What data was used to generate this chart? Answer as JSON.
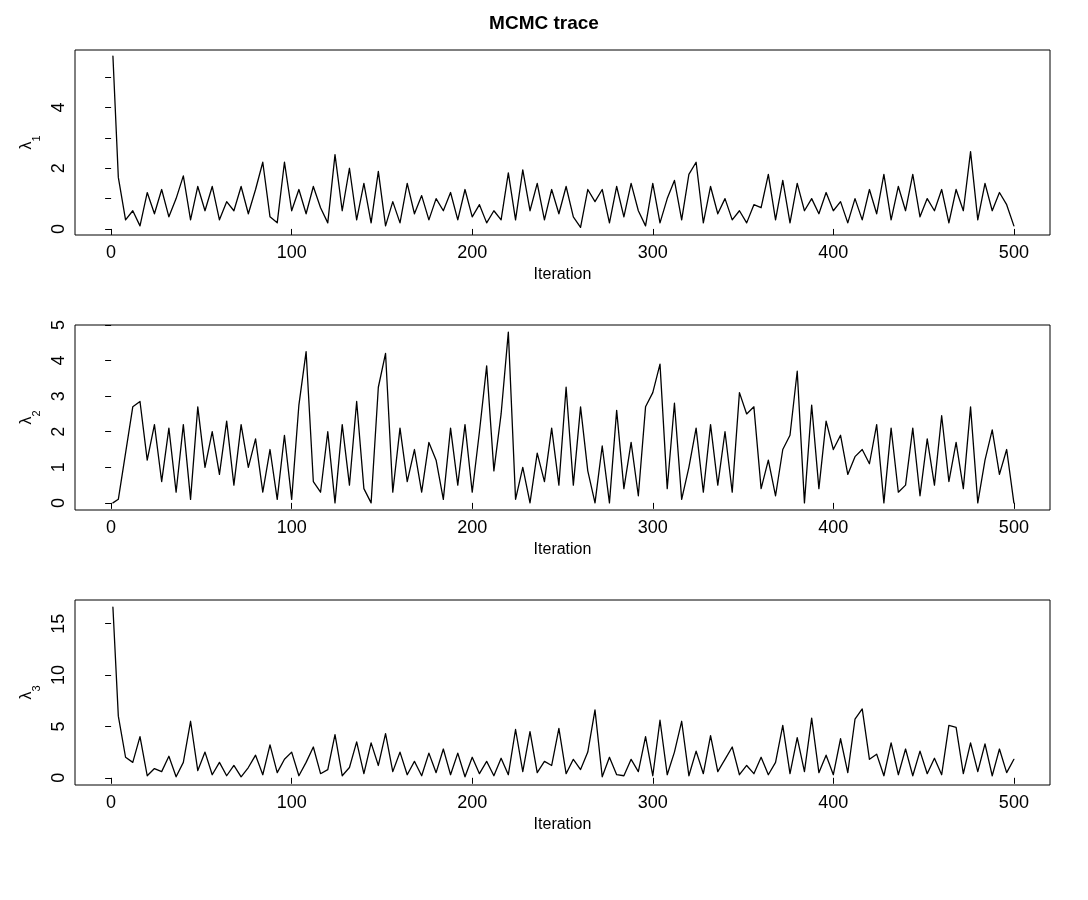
{
  "chart_data": [
    {
      "type": "line",
      "title": "MCMC trace",
      "xlabel": "Iteration",
      "ylabel": "λ$_{1}$",
      "xlim": [
        -20,
        520
      ],
      "xticks": [
        0,
        100,
        200,
        300,
        400,
        500
      ],
      "ylim": [
        -0.2,
        5.9
      ],
      "yticks": [
        0,
        {
          "value": 1,
          "label": null
        },
        2,
        {
          "value": 3,
          "label": null
        },
        4,
        {
          "value": 5,
          "label": null
        }
      ],
      "marker": "none",
      "line_style": "solid",
      "x": [
        1,
        4,
        8,
        12,
        16,
        20,
        24,
        28,
        32,
        36,
        40,
        44,
        48,
        52,
        56,
        60,
        64,
        68,
        72,
        76,
        80,
        84,
        88,
        92,
        96,
        100,
        104,
        108,
        112,
        116,
        120,
        124,
        128,
        132,
        136,
        140,
        144,
        148,
        152,
        156,
        160,
        164,
        168,
        172,
        176,
        180,
        184,
        188,
        192,
        196,
        200,
        204,
        208,
        212,
        216,
        220,
        224,
        228,
        232,
        236,
        240,
        244,
        248,
        252,
        256,
        260,
        264,
        268,
        272,
        276,
        280,
        284,
        288,
        292,
        296,
        300,
        304,
        308,
        312,
        316,
        320,
        324,
        328,
        332,
        336,
        340,
        344,
        348,
        352,
        356,
        360,
        364,
        368,
        372,
        376,
        380,
        384,
        388,
        392,
        396,
        400,
        404,
        408,
        412,
        416,
        420,
        424,
        428,
        432,
        436,
        440,
        444,
        448,
        452,
        456,
        460,
        464,
        468,
        472,
        476,
        480,
        484,
        488,
        492,
        496,
        500
      ],
      "series": [
        {
          "color": "#000000",
          "values": [
            5.7,
            1.7,
            0.3,
            0.6,
            0.1,
            1.2,
            0.5,
            1.3,
            0.4,
            1.0,
            1.75,
            0.3,
            1.4,
            0.6,
            1.4,
            0.3,
            0.9,
            0.6,
            1.4,
            0.5,
            1.3,
            2.2,
            0.4,
            0.2,
            2.2,
            0.6,
            1.3,
            0.5,
            1.4,
            0.7,
            0.2,
            2.45,
            0.6,
            2.0,
            0.3,
            1.5,
            0.2,
            1.9,
            0.1,
            0.9,
            0.2,
            1.5,
            0.5,
            1.1,
            0.3,
            1.0,
            0.6,
            1.2,
            0.3,
            1.3,
            0.4,
            0.8,
            0.2,
            0.6,
            0.3,
            1.85,
            0.3,
            1.95,
            0.6,
            1.5,
            0.3,
            1.3,
            0.5,
            1.4,
            0.4,
            0.05,
            1.3,
            0.9,
            1.3,
            0.2,
            1.4,
            0.4,
            1.5,
            0.6,
            0.1,
            1.5,
            0.2,
            1.0,
            1.6,
            0.3,
            1.8,
            2.2,
            0.2,
            1.4,
            0.5,
            1.0,
            0.3,
            0.6,
            0.2,
            0.8,
            0.7,
            1.8,
            0.3,
            1.6,
            0.2,
            1.5,
            0.6,
            1.0,
            0.5,
            1.2,
            0.6,
            0.9,
            0.2,
            1.0,
            0.3,
            1.3,
            0.5,
            1.8,
            0.3,
            1.4,
            0.6,
            1.8,
            0.4,
            1.0,
            0.6,
            1.3,
            0.2,
            1.3,
            0.6,
            2.55,
            0.3,
            1.5,
            0.6,
            1.2,
            0.8,
            0.1
          ]
        }
      ]
    },
    {
      "type": "line",
      "xlabel": "Iteration",
      "ylabel": "λ$_{2}$",
      "xlim": [
        -20,
        520
      ],
      "xticks": [
        0,
        100,
        200,
        300,
        400,
        500
      ],
      "ylim": [
        -0.2,
        5.0
      ],
      "yticks": [
        0,
        1,
        2,
        3,
        4,
        5
      ],
      "marker": "none",
      "line_style": "solid",
      "x": [
        1,
        4,
        8,
        12,
        16,
        20,
        24,
        28,
        32,
        36,
        40,
        44,
        48,
        52,
        56,
        60,
        64,
        68,
        72,
        76,
        80,
        84,
        88,
        92,
        96,
        100,
        104,
        108,
        112,
        116,
        120,
        124,
        128,
        132,
        136,
        140,
        144,
        148,
        152,
        156,
        160,
        164,
        168,
        172,
        176,
        180,
        184,
        188,
        192,
        196,
        200,
        204,
        208,
        212,
        216,
        220,
        224,
        228,
        232,
        236,
        240,
        244,
        248,
        252,
        256,
        260,
        264,
        268,
        272,
        276,
        280,
        284,
        288,
        292,
        296,
        300,
        304,
        308,
        312,
        316,
        320,
        324,
        328,
        332,
        336,
        340,
        344,
        348,
        352,
        356,
        360,
        364,
        368,
        372,
        376,
        380,
        384,
        388,
        392,
        396,
        400,
        404,
        408,
        412,
        416,
        420,
        424,
        428,
        432,
        436,
        440,
        444,
        448,
        452,
        456,
        460,
        464,
        468,
        472,
        476,
        480,
        484,
        488,
        492,
        496,
        500
      ],
      "series": [
        {
          "color": "#000000",
          "values": [
            0.0,
            0.1,
            1.4,
            2.7,
            2.85,
            1.2,
            2.2,
            0.6,
            2.1,
            0.3,
            2.2,
            0.1,
            2.7,
            1.0,
            2.0,
            0.8,
            2.3,
            0.5,
            2.2,
            1.0,
            1.8,
            0.3,
            1.5,
            0.1,
            1.9,
            0.1,
            2.75,
            4.25,
            0.6,
            0.3,
            2.0,
            0.0,
            2.2,
            0.5,
            2.85,
            0.4,
            0.0,
            3.25,
            4.2,
            0.3,
            2.1,
            0.6,
            1.5,
            0.3,
            1.7,
            1.2,
            0.1,
            2.1,
            0.5,
            2.2,
            0.3,
            2.0,
            3.85,
            0.9,
            2.5,
            4.8,
            0.1,
            1.0,
            0.0,
            1.4,
            0.6,
            2.1,
            0.5,
            3.25,
            0.5,
            2.7,
            0.9,
            0.0,
            1.6,
            0.0,
            2.6,
            0.4,
            1.7,
            0.2,
            2.7,
            3.1,
            3.9,
            0.4,
            2.8,
            0.1,
            1.0,
            2.1,
            0.3,
            2.2,
            0.5,
            2.0,
            0.3,
            3.1,
            2.5,
            2.7,
            0.4,
            1.2,
            0.2,
            1.5,
            1.9,
            3.7,
            0.0,
            2.75,
            0.4,
            2.3,
            1.5,
            1.9,
            0.8,
            1.3,
            1.5,
            1.1,
            2.2,
            0.0,
            2.1,
            0.3,
            0.5,
            2.1,
            0.2,
            1.8,
            0.5,
            2.45,
            0.6,
            1.7,
            0.4,
            2.7,
            0.0,
            1.2,
            2.05,
            0.8,
            1.5,
            0.0
          ]
        }
      ]
    },
    {
      "type": "line",
      "xlabel": "Iteration",
      "ylabel": "λ$_{3}$",
      "xlim": [
        -20,
        520
      ],
      "xticks": [
        0,
        100,
        200,
        300,
        400,
        500
      ],
      "ylim": [
        -0.7,
        17.3
      ],
      "yticks": [
        0,
        5,
        10,
        15
      ],
      "marker": "none",
      "line_style": "solid",
      "x": [
        1,
        4,
        8,
        12,
        16,
        20,
        24,
        28,
        32,
        36,
        40,
        44,
        48,
        52,
        56,
        60,
        64,
        68,
        72,
        76,
        80,
        84,
        88,
        92,
        96,
        100,
        104,
        108,
        112,
        116,
        120,
        124,
        128,
        132,
        136,
        140,
        144,
        148,
        152,
        156,
        160,
        164,
        168,
        172,
        176,
        180,
        184,
        188,
        192,
        196,
        200,
        204,
        208,
        212,
        216,
        220,
        224,
        228,
        232,
        236,
        240,
        244,
        248,
        252,
        256,
        260,
        264,
        268,
        272,
        276,
        280,
        284,
        288,
        292,
        296,
        300,
        304,
        308,
        312,
        316,
        320,
        324,
        328,
        332,
        336,
        340,
        344,
        348,
        352,
        356,
        360,
        364,
        368,
        372,
        376,
        380,
        384,
        388,
        392,
        396,
        400,
        404,
        408,
        412,
        416,
        420,
        424,
        428,
        432,
        436,
        440,
        444,
        448,
        452,
        456,
        460,
        464,
        468,
        472,
        476,
        480,
        484,
        488,
        492,
        496,
        500
      ],
      "series": [
        {
          "color": "#000000",
          "values": [
            16.6,
            6.0,
            2.0,
            1.5,
            4.0,
            0.2,
            0.9,
            0.6,
            2.1,
            0.1,
            1.5,
            5.5,
            0.7,
            2.5,
            0.3,
            1.5,
            0.2,
            1.2,
            0.1,
            1.0,
            2.2,
            0.3,
            3.2,
            0.5,
            1.8,
            2.5,
            0.2,
            1.5,
            3.0,
            0.4,
            0.8,
            4.2,
            0.2,
            1.0,
            3.5,
            0.4,
            3.4,
            1.2,
            4.3,
            0.6,
            2.5,
            0.3,
            1.6,
            0.2,
            2.4,
            0.5,
            2.8,
            0.3,
            2.4,
            0.1,
            2.0,
            0.4,
            1.6,
            0.2,
            1.9,
            0.3,
            4.7,
            0.6,
            4.5,
            0.5,
            1.6,
            1.2,
            4.8,
            0.4,
            1.8,
            0.8,
            2.5,
            6.6,
            0.1,
            2.0,
            0.3,
            0.2,
            1.8,
            0.6,
            4.0,
            0.2,
            5.6,
            0.3,
            2.5,
            5.5,
            0.2,
            2.6,
            0.4,
            4.1,
            0.6,
            1.8,
            3.0,
            0.3,
            1.2,
            0.4,
            2.0,
            0.3,
            1.5,
            5.1,
            0.4,
            3.9,
            0.6,
            5.8,
            0.5,
            2.2,
            0.3,
            3.8,
            0.5,
            5.7,
            6.7,
            1.8,
            2.3,
            0.2,
            3.4,
            0.3,
            2.8,
            0.2,
            2.6,
            0.4,
            1.9,
            0.3,
            5.1,
            4.9,
            0.4,
            3.4,
            0.6,
            3.3,
            0.2,
            2.8,
            0.5,
            1.8
          ]
        }
      ]
    }
  ]
}
